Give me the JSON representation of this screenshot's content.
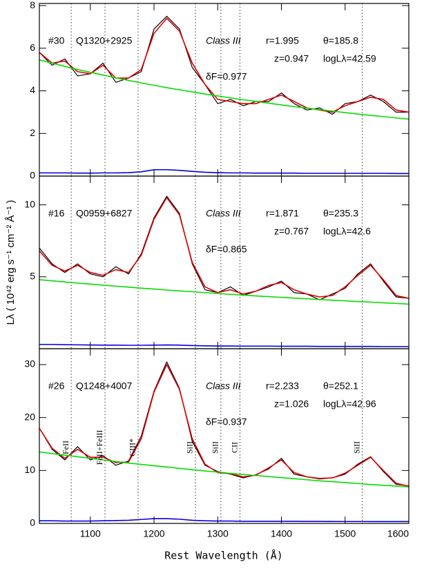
{
  "xlabel": "Rest Wavelength (Å)",
  "ylabel": "Lλ ( 10⁴² erg s⁻¹ cm⁻² Å⁻¹ )",
  "chart_data": [
    {
      "type": "line",
      "xlim": [
        1020,
        1600
      ],
      "xticks": [
        1100,
        1200,
        1300,
        1400,
        1500,
        1600
      ],
      "ylim": [
        0,
        8.1
      ],
      "yticks": [
        0,
        2,
        4,
        6,
        8
      ],
      "annotations": [
        "#30",
        "Q1320+2925",
        "Class III",
        "r=1.995",
        "θ=185.8",
        "z=0.947",
        "logLλ=42.59",
        "δF=0.977"
      ],
      "vlines": [
        1070,
        1123,
        1175,
        1265,
        1305,
        1335,
        1527
      ],
      "x": [
        1020,
        1040,
        1060,
        1080,
        1100,
        1120,
        1140,
        1160,
        1180,
        1200,
        1220,
        1240,
        1260,
        1280,
        1300,
        1320,
        1340,
        1360,
        1380,
        1400,
        1420,
        1440,
        1460,
        1480,
        1500,
        1520,
        1540,
        1560,
        1580,
        1600
      ],
      "series": [
        {
          "color": "#000000",
          "values": [
            5.8,
            5.2,
            5.5,
            4.7,
            4.8,
            5.3,
            4.4,
            4.6,
            4.9,
            6.9,
            7.5,
            6.9,
            5.1,
            4.3,
            3.4,
            3.6,
            3.3,
            3.5,
            3.5,
            3.9,
            3.4,
            3.1,
            3.2,
            2.9,
            3.4,
            3.5,
            3.8,
            3.5,
            3.0,
            3.0
          ]
        },
        {
          "color": "#dd0000",
          "values": [
            5.8,
            5.3,
            5.4,
            4.9,
            4.8,
            5.2,
            4.6,
            4.6,
            5.0,
            6.7,
            7.4,
            6.8,
            5.3,
            4.3,
            3.6,
            3.5,
            3.4,
            3.4,
            3.6,
            3.8,
            3.5,
            3.2,
            3.1,
            3.0,
            3.3,
            3.5,
            3.7,
            3.6,
            3.1,
            3.0
          ]
        },
        {
          "color": "#00dd00",
          "values": [
            5.45,
            5.3,
            5.15,
            5.0,
            4.87,
            4.74,
            4.61,
            4.49,
            4.37,
            4.26,
            4.15,
            4.05,
            3.95,
            3.85,
            3.76,
            3.67,
            3.58,
            3.5,
            3.42,
            3.34,
            3.26,
            3.19,
            3.12,
            3.05,
            2.98,
            2.91,
            2.85,
            2.79,
            2.73,
            2.67
          ]
        },
        {
          "color": "#0000dd",
          "values": [
            0.15,
            0.15,
            0.15,
            0.14,
            0.14,
            0.15,
            0.15,
            0.16,
            0.2,
            0.3,
            0.3,
            0.27,
            0.22,
            0.18,
            0.16,
            0.15,
            0.15,
            0.14,
            0.14,
            0.14,
            0.14,
            0.13,
            0.13,
            0.13,
            0.13,
            0.13,
            0.13,
            0.13,
            0.12,
            0.12
          ]
        }
      ]
    },
    {
      "type": "line",
      "xlim": [
        1020,
        1600
      ],
      "xticks": [
        1100,
        1200,
        1300,
        1400,
        1500,
        1600
      ],
      "ylim": [
        0,
        12
      ],
      "yticks": [
        5,
        10
      ],
      "annotations": [
        "#16",
        "Q0959+6827",
        "Class III",
        "r=1.871",
        "θ=235.3",
        "z=0.767",
        "logLλ=42.6",
        "δF=0.865"
      ],
      "vlines": [
        1070,
        1123,
        1175,
        1265,
        1305,
        1335,
        1527
      ],
      "x": [
        1020,
        1040,
        1060,
        1080,
        1100,
        1120,
        1140,
        1160,
        1180,
        1200,
        1220,
        1240,
        1260,
        1280,
        1300,
        1320,
        1340,
        1360,
        1380,
        1400,
        1420,
        1440,
        1460,
        1480,
        1500,
        1520,
        1540,
        1560,
        1580,
        1600
      ],
      "series": [
        {
          "color": "#000000",
          "values": [
            7.0,
            5.9,
            5.3,
            5.9,
            5.2,
            5.0,
            5.7,
            5.2,
            6.6,
            9.1,
            10.6,
            9.4,
            5.9,
            4.1,
            3.9,
            4.3,
            3.7,
            4.0,
            4.3,
            4.7,
            3.9,
            3.8,
            3.4,
            3.8,
            4.2,
            5.2,
            5.9,
            4.7,
            3.6,
            3.5
          ]
        },
        {
          "color": "#dd0000",
          "values": [
            6.8,
            5.8,
            5.4,
            5.8,
            5.3,
            5.1,
            5.5,
            5.3,
            6.5,
            9.0,
            10.5,
            9.3,
            6.0,
            4.3,
            3.9,
            4.1,
            3.8,
            4.0,
            4.4,
            4.6,
            4.1,
            3.8,
            3.6,
            3.7,
            4.3,
            5.1,
            5.8,
            4.8,
            3.7,
            3.5
          ]
        },
        {
          "color": "#00dd00",
          "values": [
            4.8,
            4.72,
            4.64,
            4.56,
            4.49,
            4.42,
            4.35,
            4.28,
            4.21,
            4.15,
            4.08,
            4.02,
            3.96,
            3.9,
            3.84,
            3.78,
            3.73,
            3.67,
            3.62,
            3.57,
            3.52,
            3.47,
            3.42,
            3.37,
            3.33,
            3.28,
            3.24,
            3.19,
            3.15,
            3.1
          ]
        },
        {
          "color": "#0000dd",
          "values": [
            0.3,
            0.3,
            0.28,
            0.27,
            0.26,
            0.25,
            0.25,
            0.24,
            0.24,
            0.25,
            0.26,
            0.25,
            0.22,
            0.2,
            0.19,
            0.19,
            0.18,
            0.18,
            0.18,
            0.17,
            0.17,
            0.17,
            0.16,
            0.16,
            0.16,
            0.16,
            0.16,
            0.15,
            0.15,
            0.15
          ]
        }
      ]
    },
    {
      "type": "line",
      "xlim": [
        1020,
        1600
      ],
      "xticks": [
        1100,
        1200,
        1300,
        1400,
        1500,
        1600
      ],
      "ylim": [
        0,
        33
      ],
      "yticks": [
        0,
        10,
        20,
        30
      ],
      "annotations": [
        "#26",
        "Q1248+4007",
        "Class III",
        "r=2.233",
        "θ=252.1",
        "z=1.026",
        "logLλ=42.96",
        "δF=0.937"
      ],
      "vlines": [
        1070,
        1123,
        1175,
        1265,
        1305,
        1335,
        1527
      ],
      "vline_labels": [
        "FeII",
        "FeII+FeIII",
        "CIII*",
        "SiII",
        "SiII",
        "CII",
        "SiII"
      ],
      "x": [
        1020,
        1040,
        1060,
        1080,
        1100,
        1120,
        1140,
        1160,
        1180,
        1200,
        1220,
        1240,
        1260,
        1280,
        1300,
        1320,
        1340,
        1360,
        1380,
        1400,
        1420,
        1440,
        1460,
        1480,
        1500,
        1520,
        1540,
        1560,
        1580,
        1600
      ],
      "series": [
        {
          "color": "#000000",
          "values": [
            18,
            14,
            12,
            14.5,
            12,
            12.8,
            11,
            11.8,
            16.5,
            25,
            30.5,
            25.5,
            15.5,
            11,
            9.8,
            9.3,
            8.6,
            9.2,
            10.3,
            12.3,
            9.3,
            8.8,
            8.4,
            8.6,
            9.3,
            11.2,
            12.6,
            9.8,
            7.4,
            7.1
          ]
        },
        {
          "color": "#dd0000",
          "values": [
            18,
            14.2,
            12.3,
            14,
            12.5,
            12.5,
            11.5,
            11.6,
            16,
            24.8,
            30,
            25.3,
            16,
            11.2,
            9.6,
            9.4,
            8.8,
            9.1,
            10.5,
            12,
            9.6,
            8.8,
            8.5,
            8.6,
            9.5,
            11,
            12.5,
            10,
            7.6,
            7.0
          ]
        },
        {
          "color": "#00dd00",
          "values": [
            13.5,
            13.2,
            12.9,
            12.6,
            12.3,
            12.0,
            11.7,
            11.4,
            11.15,
            10.9,
            10.65,
            10.4,
            10.15,
            9.9,
            9.7,
            9.45,
            9.25,
            9.05,
            8.85,
            8.65,
            8.45,
            8.25,
            8.05,
            7.9,
            7.7,
            7.55,
            7.35,
            7.2,
            7.05,
            6.9
          ]
        },
        {
          "color": "#0000dd",
          "values": [
            0.5,
            0.5,
            0.45,
            0.45,
            0.45,
            0.5,
            0.55,
            0.6,
            0.75,
            0.9,
            0.9,
            0.8,
            0.6,
            0.5,
            0.45,
            0.45,
            0.4,
            0.4,
            0.4,
            0.4,
            0.4,
            0.38,
            0.38,
            0.37,
            0.36,
            0.36,
            0.35,
            0.35,
            0.35,
            0.35
          ]
        }
      ]
    }
  ]
}
